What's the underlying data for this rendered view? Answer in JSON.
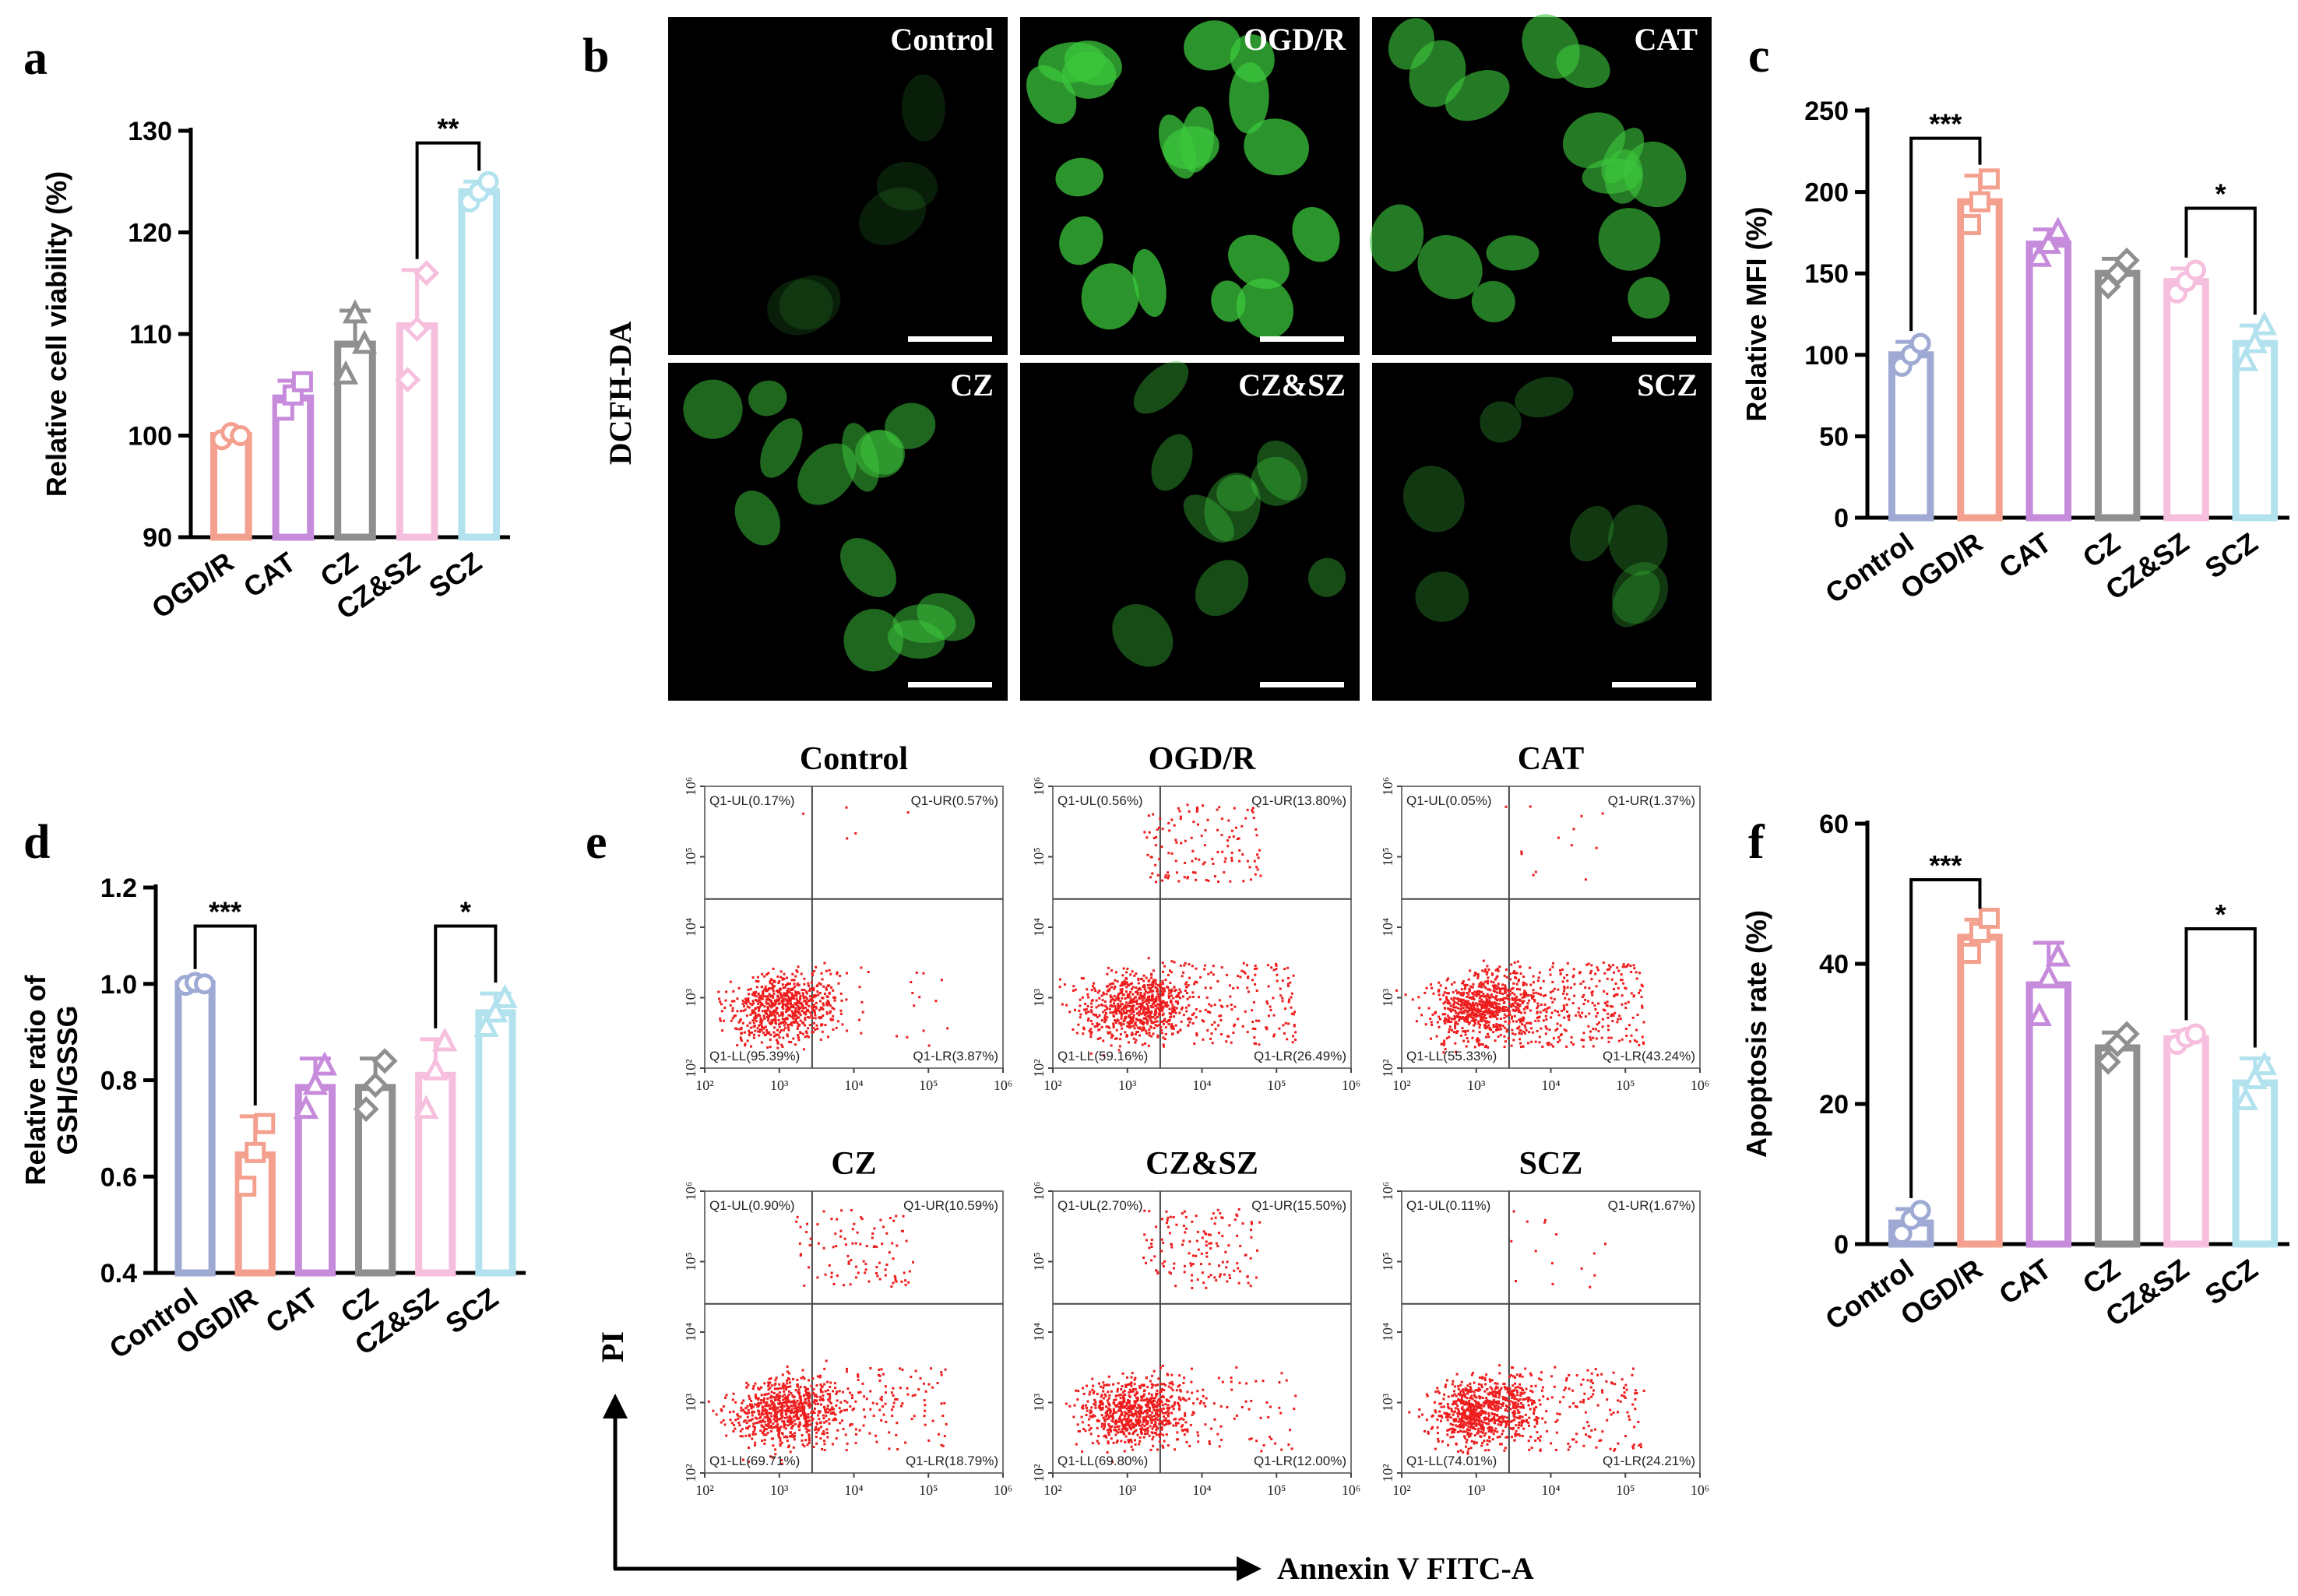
{
  "colors": {
    "Control": "#9ea9d4",
    "OGD/R": "#f4a08f",
    "CAT": "#c78bdc",
    "CZ": "#8f8f8f",
    "CZ&SZ": "#f6bfdd",
    "SCZ": "#b2e2ee",
    "fluorescence": "#3cc83c",
    "dots": "#ee1c1c"
  },
  "panel_letters": [
    "a",
    "b",
    "c",
    "d",
    "e",
    "f"
  ],
  "micrographs": {
    "stain_label": "DCFH-DA",
    "panels": [
      {
        "label": "Control",
        "intensity": 0.05
      },
      {
        "label": "OGD/R",
        "intensity": 0.95
      },
      {
        "label": "CAT",
        "intensity": 0.75
      },
      {
        "label": "CZ",
        "intensity": 0.6
      },
      {
        "label": "CZ&SZ",
        "intensity": 0.4
      },
      {
        "label": "SCZ",
        "intensity": 0.25
      }
    ]
  },
  "flow": {
    "x_axis_label": "Annexin V FITC-A",
    "y_axis_label": "PI",
    "tick_labels": [
      "10²",
      "10³",
      "10⁴",
      "10⁵",
      "10⁶"
    ],
    "plots": [
      {
        "title": "Control",
        "UL": "Q1-UL(0.17%)",
        "UR": "Q1-UR(0.57%)",
        "LL": "Q1-LL(95.39%)",
        "LR": "Q1-LR(3.87%)",
        "ur_frac": 0.006,
        "lr_frac": 0.04
      },
      {
        "title": "OGD/R",
        "UL": "Q1-UL(0.56%)",
        "UR": "Q1-UR(13.80%)",
        "LL": "Q1-LL(59.16%)",
        "LR": "Q1-LR(26.49%)",
        "ur_frac": 0.14,
        "lr_frac": 0.26
      },
      {
        "title": "CAT",
        "UL": "Q1-UL(0.05%)",
        "UR": "Q1-UR(1.37%)",
        "LL": "Q1-LL(55.33%)",
        "LR": "Q1-LR(43.24%)",
        "ur_frac": 0.014,
        "lr_frac": 0.43
      },
      {
        "title": "CZ",
        "UL": "Q1-UL(0.90%)",
        "UR": "Q1-UR(10.59%)",
        "LL": "Q1-LL(69.71%)",
        "LR": "Q1-LR(18.79%)",
        "ur_frac": 0.11,
        "lr_frac": 0.19
      },
      {
        "title": "CZ&SZ",
        "UL": "Q1-UL(2.70%)",
        "UR": "Q1-UR(15.50%)",
        "LL": "Q1-LL(69.80%)",
        "LR": "Q1-LR(12.00%)",
        "ur_frac": 0.155,
        "lr_frac": 0.12
      },
      {
        "title": "SCZ",
        "UL": "Q1-UL(0.11%)",
        "UR": "Q1-UR(1.67%)",
        "LL": "Q1-LL(74.01%)",
        "LR": "Q1-LR(24.21%)",
        "ur_frac": 0.017,
        "lr_frac": 0.24
      }
    ]
  },
  "chart_data": [
    {
      "panel": "a",
      "type": "bar",
      "ylabel": "Relative cell viability (%)",
      "ylim": [
        90,
        130
      ],
      "yticks": [
        90,
        100,
        110,
        120,
        130
      ],
      "categories": [
        "OGD/R",
        "CAT",
        "CZ",
        "CZ&SZ",
        "SCZ"
      ],
      "values": [
        100,
        103.7,
        109,
        110.8,
        124
      ],
      "errors": [
        0.3,
        1.7,
        3.3,
        5.5,
        1.0
      ],
      "markers": [
        "circle",
        "square",
        "triangle",
        "diamond",
        "circle"
      ],
      "points": [
        [
          99.6,
          100.3,
          100.0
        ],
        [
          102.5,
          104.0,
          105.3
        ],
        [
          106.0,
          112.0,
          109.0
        ],
        [
          105.5,
          110.5,
          116.0
        ],
        [
          123.0,
          124.0,
          125.0
        ]
      ],
      "significance": [
        {
          "from": 3,
          "to": 4,
          "label": "**",
          "y": 128.8
        }
      ]
    },
    {
      "panel": "c",
      "type": "bar",
      "ylabel": "Relative MFI (%)",
      "ylim": [
        0,
        250
      ],
      "yticks": [
        0,
        50,
        100,
        150,
        200,
        250
      ],
      "categories": [
        "Control",
        "OGD/R",
        "CAT",
        "CZ",
        "CZ&SZ",
        "SCZ"
      ],
      "values": [
        100,
        194,
        168,
        150,
        145,
        107
      ],
      "errors": [
        8,
        16,
        9,
        9,
        8,
        11
      ],
      "markers": [
        "circle",
        "square",
        "triangle",
        "diamond",
        "circle",
        "triangle"
      ],
      "points": [
        [
          93,
          100,
          107
        ],
        [
          180,
          194,
          208
        ],
        [
          160,
          168,
          176
        ],
        [
          142,
          150,
          158
        ],
        [
          138,
          145,
          152
        ],
        [
          96,
          107,
          118
        ]
      ],
      "significance": [
        {
          "from": 0,
          "to": 1,
          "label": "***",
          "y": 233
        },
        {
          "from": 4,
          "to": 5,
          "label": "*",
          "y": 190
        }
      ]
    },
    {
      "panel": "d",
      "type": "bar",
      "ylabel": "Relative ratio of GSH/GSSG",
      "ylim": [
        0.4,
        1.2
      ],
      "yticks": [
        0.4,
        0.6,
        0.8,
        1.0,
        1.2
      ],
      "categories": [
        "Control",
        "OGD/R",
        "CAT",
        "CZ",
        "CZ&SZ",
        "SCZ"
      ],
      "values": [
        1.0,
        0.645,
        0.785,
        0.785,
        0.81,
        0.94
      ],
      "errors": [
        0.008,
        0.08,
        0.06,
        0.06,
        0.075,
        0.04
      ],
      "markers": [
        "circle",
        "square",
        "triangle",
        "diamond",
        "triangle",
        "triangle"
      ],
      "points": [
        [
          0.997,
          1.003,
          1.0
        ],
        [
          0.58,
          0.65,
          0.71
        ],
        [
          0.74,
          0.79,
          0.83
        ],
        [
          0.74,
          0.79,
          0.84
        ],
        [
          0.74,
          0.82,
          0.88
        ],
        [
          0.91,
          0.94,
          0.97
        ]
      ],
      "significance": [
        {
          "from": 0,
          "to": 1,
          "label": "***",
          "y": 1.12
        },
        {
          "from": 4,
          "to": 5,
          "label": "*",
          "y": 1.12
        }
      ]
    },
    {
      "panel": "f",
      "type": "bar",
      "ylabel": "Apoptosis rate (%)",
      "ylim": [
        0,
        60
      ],
      "yticks": [
        0,
        20,
        40,
        60
      ],
      "categories": [
        "Control",
        "OGD/R",
        "CAT",
        "CZ",
        "CZ&SZ",
        "SCZ"
      ],
      "values": [
        3,
        43.8,
        37,
        28,
        29.3,
        23
      ],
      "errors": [
        2,
        2.5,
        6,
        2.2,
        1.1,
        3.5
      ],
      "markers": [
        "circle",
        "square",
        "triangle",
        "diamond",
        "circle",
        "triangle"
      ],
      "points": [
        [
          1.5,
          3.5,
          4.8
        ],
        [
          41.5,
          44.5,
          46.5
        ],
        [
          32.5,
          38.0,
          41.0
        ],
        [
          26.0,
          28.5,
          30.0
        ],
        [
          28.5,
          29.5,
          30.0
        ],
        [
          20.5,
          23.5,
          25.5
        ]
      ],
      "significance": [
        {
          "from": 0,
          "to": 1,
          "label": "***",
          "y": 52
        },
        {
          "from": 4,
          "to": 5,
          "label": "*",
          "y": 45
        }
      ]
    }
  ]
}
